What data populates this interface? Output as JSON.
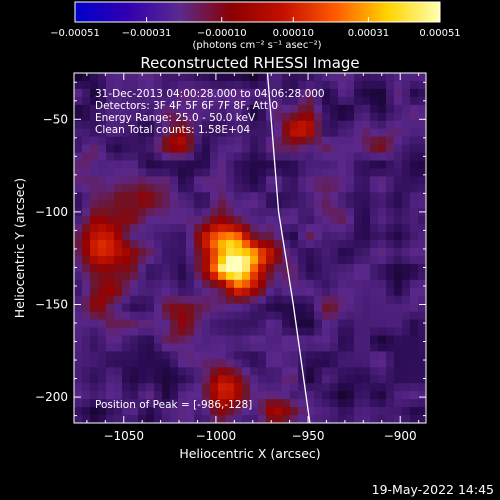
{
  "chart_data": {
    "type": "heatmap",
    "title": "Reconstructed RHESSI Image",
    "xlabel": "Heliocentric X (arcsec)",
    "ylabel": "Heliocentric Y (arcsec)",
    "xlim": [
      -1077,
      -886
    ],
    "ylim": [
      -214,
      -25
    ],
    "xticks": [
      -1050,
      -1000,
      -950,
      -900
    ],
    "yticks": [
      -50,
      -100,
      -150,
      -200
    ],
    "xtick_labels": [
      "−1050",
      "−1000",
      "−950",
      "−900"
    ],
    "ytick_labels": [
      "−50",
      "−100",
      "−150",
      "−200"
    ],
    "colorbar": {
      "label": "(photons cm⁻² s⁻¹ asec⁻²)",
      "range": [
        -0.00051,
        0.00051
      ],
      "ticks": [
        -0.00051,
        -0.00031,
        -0.0001,
        0.0001,
        0.00031,
        0.00051
      ],
      "tick_labels": [
        "−0.00051",
        "−0.00031",
        "−0.00010",
        "0.00010",
        "0.00031",
        "0.00051"
      ],
      "colors": [
        "#0000cc",
        "#3000b0",
        "#5a2a90",
        "#8a0000",
        "#c41000",
        "#ff5a00",
        "#ffd400",
        "#ffffb0"
      ]
    },
    "info_lines": [
      "31-Dec-2013 04:00:28.000 to 04:06:28.000",
      "Detectors: 3F 4F 5F 6F 7F 8F, Att 0",
      "Energy Range: 25.0 - 50.0 keV",
      "Clean     Total counts: 1.58E+04"
    ],
    "peak_label": "Position of Peak = [-986,-128]",
    "peak": {
      "x": -986,
      "y": -128
    },
    "limb_line": [
      [
        -972,
        -25
      ],
      [
        -966,
        -100
      ],
      [
        -958,
        -150
      ],
      [
        -949,
        -214
      ]
    ],
    "sources": [
      {
        "x": -987,
        "y": -128,
        "sigma": 13,
        "amp": 1.0
      },
      {
        "x": -1000,
        "y": -115,
        "sigma": 10,
        "amp": 0.45
      },
      {
        "x": -1062,
        "y": -118,
        "sigma": 12,
        "amp": 0.65
      },
      {
        "x": -1060,
        "y": -148,
        "sigma": 9,
        "amp": 0.38
      },
      {
        "x": -995,
        "y": -195,
        "sigma": 10,
        "amp": 0.62
      },
      {
        "x": -968,
        "y": -205,
        "sigma": 8,
        "amp": 0.38
      },
      {
        "x": -1022,
        "y": -60,
        "sigma": 8,
        "amp": 0.42
      },
      {
        "x": -953,
        "y": -55,
        "sigma": 9,
        "amp": 0.42
      },
      {
        "x": -1045,
        "y": -90,
        "sigma": 9,
        "amp": 0.35
      },
      {
        "x": -1020,
        "y": -160,
        "sigma": 8,
        "amp": 0.3
      },
      {
        "x": -940,
        "y": -100,
        "sigma": 9,
        "amp": 0.25
      },
      {
        "x": -935,
        "y": -150,
        "sigma": 9,
        "amp": 0.2
      },
      {
        "x": -910,
        "y": -60,
        "sigma": 8,
        "amp": 0.25
      },
      {
        "x": -1068,
        "y": -70,
        "sigma": 7,
        "amp": 0.25
      }
    ]
  },
  "footer": {
    "date": "19-May-2022 14:45"
  }
}
